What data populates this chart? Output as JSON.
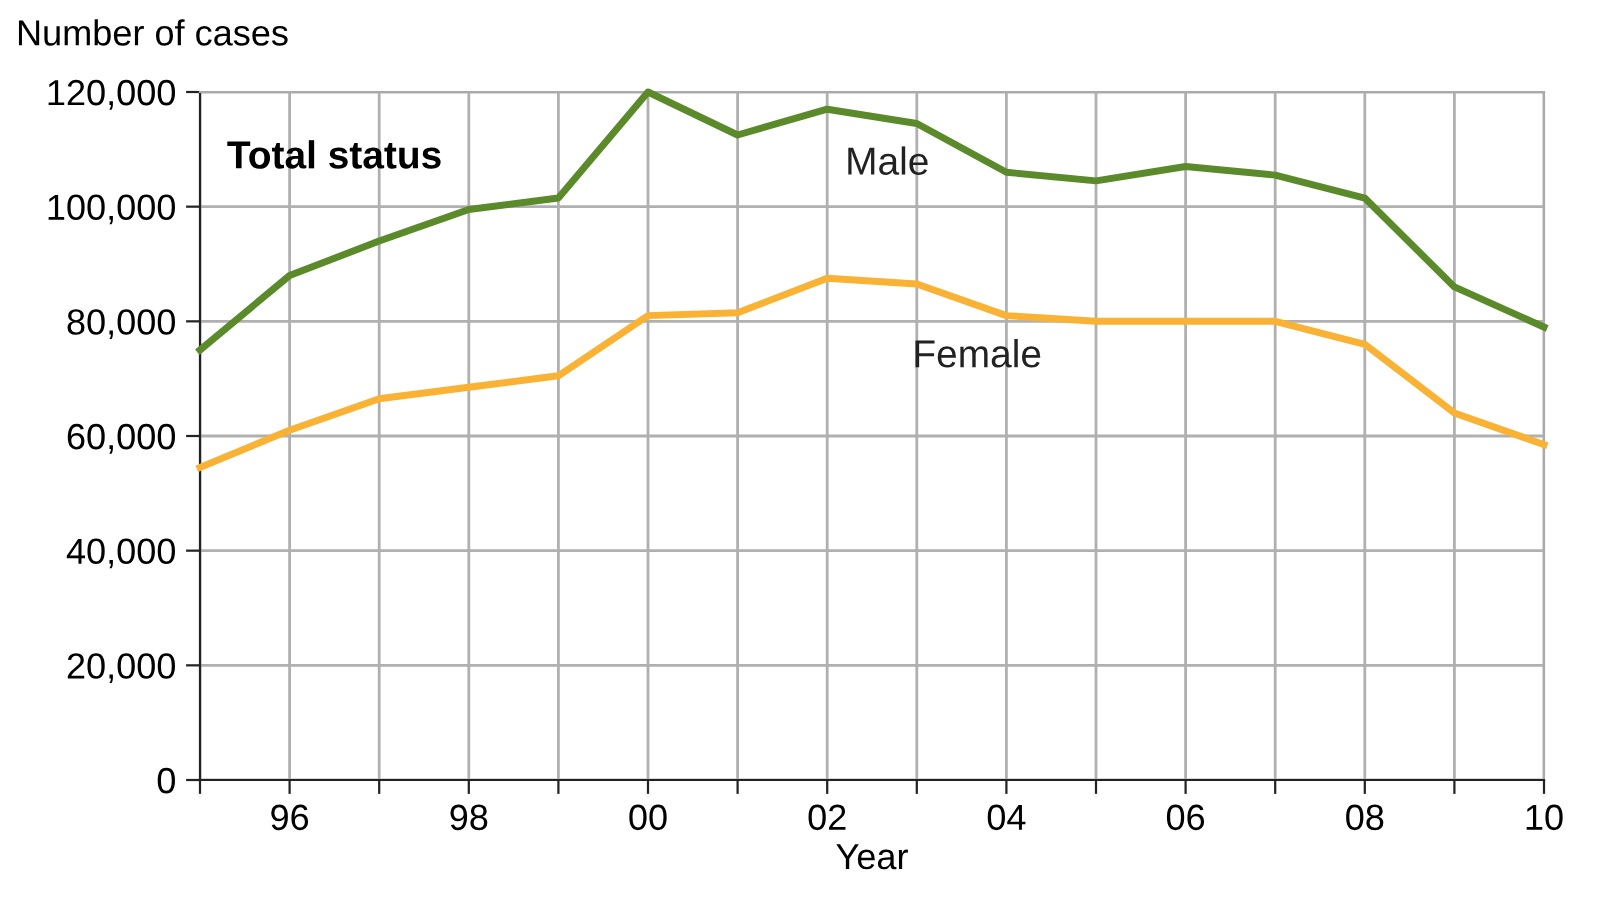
{
  "chart_data": {
    "type": "line",
    "ylabel": "Number of cases",
    "xlabel": "Year",
    "annotations": [
      "Total status"
    ],
    "x": [
      1995,
      1996,
      1997,
      1998,
      1999,
      2000,
      2001,
      2002,
      2003,
      2004,
      2005,
      2006,
      2007,
      2008,
      2009,
      2010
    ],
    "series": [
      {
        "name": "Male",
        "color": "#5b8a2a",
        "values": [
          75000,
          88000,
          94000,
          99500,
          101500,
          120000,
          112500,
          117000,
          114500,
          106000,
          104500,
          107000,
          105500,
          101500,
          86000,
          79000
        ]
      },
      {
        "name": "Female",
        "color": "#f9b233",
        "values": [
          54500,
          61000,
          66500,
          68500,
          70500,
          81000,
          81500,
          87500,
          86500,
          81000,
          80000,
          80000,
          80000,
          76000,
          64000,
          58500
        ]
      }
    ],
    "xlim": [
      1995,
      2010
    ],
    "xticks": [
      {
        "value": 1995,
        "label": null
      },
      {
        "value": 1996,
        "label": "96"
      },
      {
        "value": 1997,
        "label": null
      },
      {
        "value": 1998,
        "label": "98"
      },
      {
        "value": 1999,
        "label": null
      },
      {
        "value": 2000,
        "label": "00"
      },
      {
        "value": 2001,
        "label": null
      },
      {
        "value": 2002,
        "label": "02"
      },
      {
        "value": 2003,
        "label": null
      },
      {
        "value": 2004,
        "label": "04"
      },
      {
        "value": 2005,
        "label": null
      },
      {
        "value": 2006,
        "label": "06"
      },
      {
        "value": 2007,
        "label": null
      },
      {
        "value": 2008,
        "label": "08"
      },
      {
        "value": 2009,
        "label": null
      },
      {
        "value": 2010,
        "label": "10"
      }
    ],
    "ylim": [
      0,
      120000
    ],
    "yticks": [
      {
        "value": 0,
        "label": "0"
      },
      {
        "value": 20000,
        "label": "20,000"
      },
      {
        "value": 40000,
        "label": "40,000"
      },
      {
        "value": 60000,
        "label": "60,000"
      },
      {
        "value": 80000,
        "label": "80,000"
      },
      {
        "value": 100000,
        "label": "100,000"
      },
      {
        "value": 120000,
        "label": "120,000"
      }
    ],
    "grid": true,
    "legend": false,
    "marker": "none",
    "line_style": "solid"
  }
}
